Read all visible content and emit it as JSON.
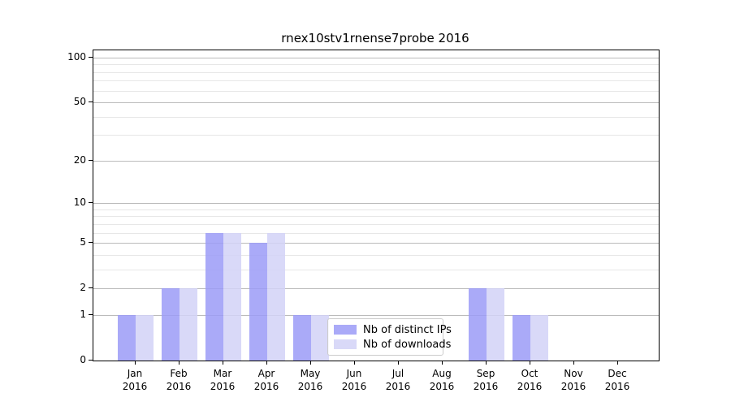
{
  "chart_data": {
    "type": "bar",
    "title": "rnex10stv1rnense7probe 2016",
    "categories": [
      "Jan",
      "Feb",
      "Mar",
      "Apr",
      "May",
      "Jun",
      "Jul",
      "Aug",
      "Sep",
      "Oct",
      "Nov",
      "Dec"
    ],
    "year": "2016",
    "series": [
      {
        "name": "Nb of distinct IPs",
        "color": "rgba(155,155,247,0.85)",
        "values": [
          1,
          2,
          6,
          5,
          1,
          0,
          0,
          0,
          2,
          1,
          0,
          0
        ]
      },
      {
        "name": "Nb of downloads",
        "color": "rgba(210,210,247,0.85)",
        "values": [
          1,
          2,
          6,
          6,
          1,
          0,
          0,
          0,
          2,
          1,
          0,
          0
        ]
      }
    ],
    "y_axis": {
      "scale": "log1p",
      "major_ticks": [
        0,
        1,
        2,
        5,
        10,
        20,
        50,
        100
      ],
      "minor_ticks": [
        3,
        4,
        6,
        7,
        8,
        9,
        30,
        40,
        60,
        70,
        80,
        90
      ],
      "ylim": [
        0,
        112
      ]
    },
    "grid": {
      "major_color": "#bbbbbb",
      "minor_color": "#e7e7e7"
    },
    "legend": {
      "position": "lower center-right"
    }
  }
}
